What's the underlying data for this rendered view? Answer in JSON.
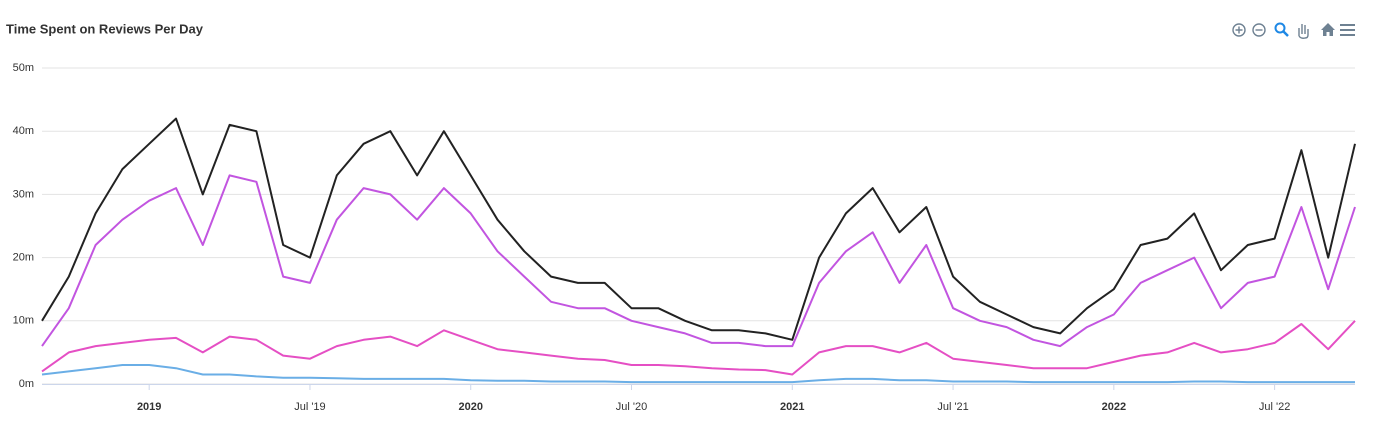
{
  "chart_data": {
    "type": "line",
    "title": "Time Spent on Reviews Per Day",
    "x": [
      "2018-09",
      "2018-10",
      "2018-11",
      "2018-12",
      "2019-01",
      "2019-02",
      "2019-03",
      "2019-04",
      "2019-05",
      "2019-06",
      "2019-07",
      "2019-08",
      "2019-09",
      "2019-10",
      "2019-11",
      "2019-12",
      "2020-01",
      "2020-02",
      "2020-03",
      "2020-04",
      "2020-05",
      "2020-06",
      "2020-07",
      "2020-08",
      "2020-09",
      "2020-10",
      "2020-11",
      "2020-12",
      "2021-01",
      "2021-02",
      "2021-03",
      "2021-04",
      "2021-05",
      "2021-06",
      "2021-07",
      "2021-08",
      "2021-09",
      "2021-10",
      "2021-11",
      "2021-12",
      "2022-01",
      "2022-02",
      "2022-03",
      "2022-04",
      "2022-05",
      "2022-06",
      "2022-07",
      "2022-08",
      "2022-09",
      "2022-10"
    ],
    "series": [
      {
        "color": "#222222",
        "values": [
          10,
          17,
          27,
          34,
          38,
          42,
          30,
          41,
          40,
          22,
          20,
          33,
          38,
          40,
          33,
          40,
          33,
          26,
          21,
          17,
          16,
          16,
          12,
          12,
          10,
          8.5,
          8.5,
          8,
          7,
          20,
          27,
          31,
          24,
          28,
          17,
          13,
          11,
          9,
          8,
          12,
          15,
          22,
          23,
          27,
          18,
          22,
          23,
          37,
          20,
          38
        ]
      },
      {
        "color": "#c255e0",
        "values": [
          6,
          12,
          22,
          26,
          29,
          31,
          22,
          33,
          32,
          17,
          16,
          26,
          31,
          30,
          26,
          31,
          27,
          21,
          17,
          13,
          12,
          12,
          10,
          9,
          8,
          6.5,
          6.5,
          6,
          6,
          16,
          21,
          24,
          16,
          22,
          12,
          10,
          9,
          7,
          6,
          9,
          11,
          16,
          18,
          20,
          12,
          16,
          17,
          28,
          15,
          28
        ]
      },
      {
        "color": "#e54fc4",
        "values": [
          2,
          5,
          6,
          6.5,
          7,
          7.3,
          5,
          7.5,
          7,
          4.5,
          4,
          6,
          7,
          7.5,
          6,
          8.5,
          7,
          5.5,
          5,
          4.5,
          4,
          3.8,
          3,
          3,
          2.8,
          2.5,
          2.3,
          2.2,
          1.5,
          5,
          6,
          6,
          5,
          6.5,
          4,
          3.5,
          3,
          2.5,
          2.5,
          2.5,
          3.5,
          4.5,
          5,
          6.5,
          5,
          5.5,
          6.5,
          9.5,
          5.5,
          10
        ]
      },
      {
        "color": "#6aaee6",
        "values": [
          1.5,
          2,
          2.5,
          3,
          3,
          2.5,
          1.5,
          1.5,
          1.2,
          1,
          1,
          0.9,
          0.8,
          0.8,
          0.8,
          0.8,
          0.6,
          0.5,
          0.5,
          0.4,
          0.4,
          0.4,
          0.3,
          0.3,
          0.3,
          0.3,
          0.3,
          0.3,
          0.3,
          0.6,
          0.8,
          0.8,
          0.6,
          0.6,
          0.4,
          0.4,
          0.4,
          0.3,
          0.3,
          0.3,
          0.3,
          0.3,
          0.3,
          0.4,
          0.4,
          0.3,
          0.3,
          0.3,
          0.3,
          0.3
        ]
      }
    ],
    "xlim": [
      "2018-09",
      "2022-10"
    ],
    "xticks": [
      {
        "value": "2019-01",
        "label": "2019"
      },
      {
        "value": "2019-07",
        "label": "Jul '19"
      },
      {
        "value": "2020-01",
        "label": "2020"
      },
      {
        "value": "2020-07",
        "label": "Jul '20"
      },
      {
        "value": "2021-01",
        "label": "2021"
      },
      {
        "value": "2021-07",
        "label": "Jul '21"
      },
      {
        "value": "2022-01",
        "label": "2022"
      },
      {
        "value": "2022-07",
        "label": "Jul '22"
      }
    ],
    "ylim": [
      0,
      50
    ],
    "yticks": [
      {
        "value": 0,
        "label": "0m"
      },
      {
        "value": 10,
        "label": "10m"
      },
      {
        "value": 20,
        "label": "20m"
      },
      {
        "value": 30,
        "label": "30m"
      },
      {
        "value": 40,
        "label": "40m"
      },
      {
        "value": 50,
        "label": "50m"
      }
    ],
    "grid": true
  }
}
